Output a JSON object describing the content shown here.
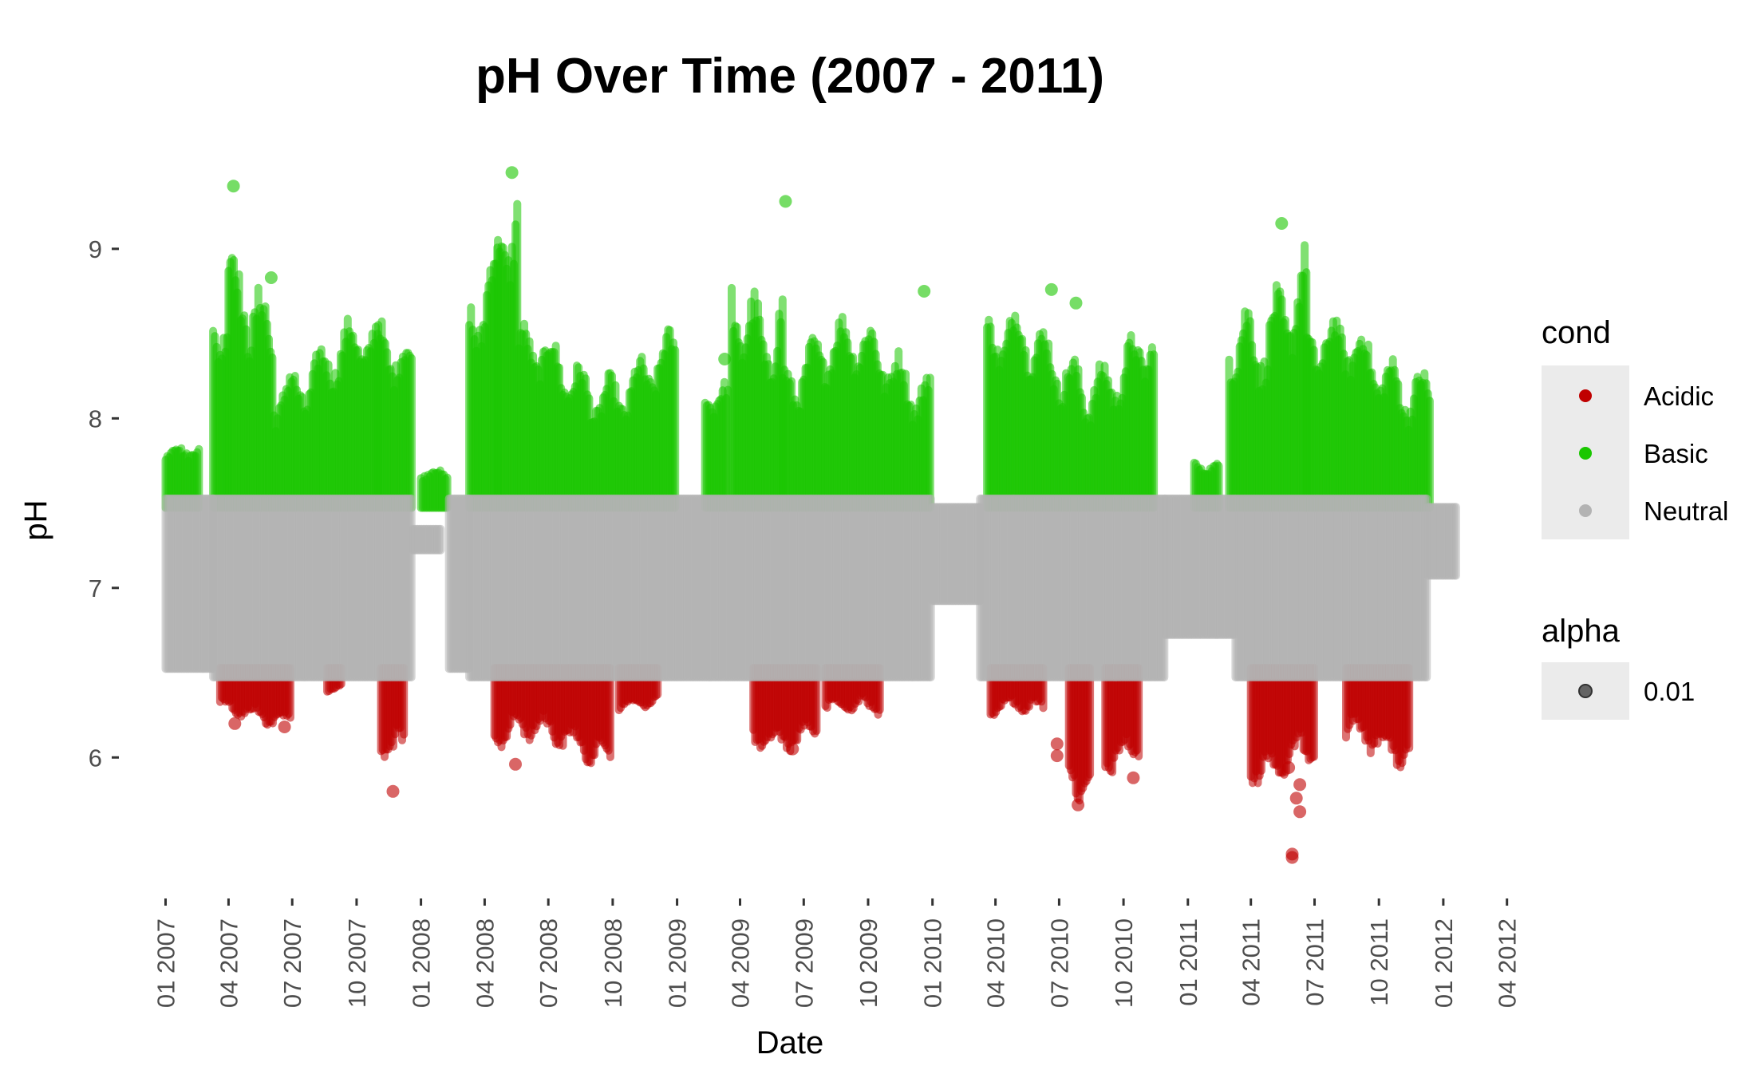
{
  "chart_data": {
    "type": "scatter",
    "title": "pH Over Time (2007 - 2011)",
    "xlabel": "Date",
    "ylabel": "pH",
    "ylim": [
      5.3,
      9.55
    ],
    "xlim": [
      "2006-11-01",
      "2012-05-01"
    ],
    "grid": false,
    "legend_position": "right",
    "y_ticks": [
      6,
      7,
      8,
      9
    ],
    "x_ticks": [
      {
        "date": "2007-01-01",
        "label": "01 2007"
      },
      {
        "date": "2007-04-01",
        "label": "04 2007"
      },
      {
        "date": "2007-07-01",
        "label": "07 2007"
      },
      {
        "date": "2007-10-01",
        "label": "10 2007"
      },
      {
        "date": "2008-01-01",
        "label": "01 2008"
      },
      {
        "date": "2008-04-01",
        "label": "04 2008"
      },
      {
        "date": "2008-07-01",
        "label": "07 2008"
      },
      {
        "date": "2008-10-01",
        "label": "10 2008"
      },
      {
        "date": "2009-01-01",
        "label": "01 2009"
      },
      {
        "date": "2009-04-01",
        "label": "04 2009"
      },
      {
        "date": "2009-07-01",
        "label": "07 2009"
      },
      {
        "date": "2009-10-01",
        "label": "10 2009"
      },
      {
        "date": "2010-01-01",
        "label": "01 2010"
      },
      {
        "date": "2010-04-01",
        "label": "04 2010"
      },
      {
        "date": "2010-07-01",
        "label": "07 2010"
      },
      {
        "date": "2010-10-01",
        "label": "10 2010"
      },
      {
        "date": "2011-01-01",
        "label": "01 2011"
      },
      {
        "date": "2011-04-01",
        "label": "04 2011"
      },
      {
        "date": "2011-07-01",
        "label": "07 2011"
      },
      {
        "date": "2011-10-01",
        "label": "10 2011"
      },
      {
        "date": "2012-01-01",
        "label": "01 2012"
      },
      {
        "date": "2012-04-01",
        "label": "04 2012"
      }
    ],
    "thresholds": {
      "neutral_min": 6.5,
      "neutral_max": 7.5
    },
    "series": [
      {
        "name": "Acidic",
        "color": "#C00000",
        "bands": [
          {
            "start": "2007-03-20",
            "end": "2007-06-30",
            "min": 6.2,
            "max": 6.5
          },
          {
            "start": "2007-08-20",
            "end": "2007-09-10",
            "min": 6.4,
            "max": 6.5
          },
          {
            "start": "2007-11-05",
            "end": "2007-12-10",
            "min": 5.8,
            "max": 6.5
          },
          {
            "start": "2008-04-15",
            "end": "2008-09-30",
            "min": 5.95,
            "max": 6.5
          },
          {
            "start": "2008-10-10",
            "end": "2008-12-05",
            "min": 6.3,
            "max": 6.5
          },
          {
            "start": "2009-04-20",
            "end": "2009-07-20",
            "min": 6.05,
            "max": 6.5
          },
          {
            "start": "2009-08-01",
            "end": "2009-10-20",
            "min": 6.2,
            "max": 6.5
          },
          {
            "start": "2010-03-25",
            "end": "2010-06-10",
            "min": 6.2,
            "max": 6.5
          },
          {
            "start": "2010-07-15",
            "end": "2010-08-15",
            "min": 5.72,
            "max": 6.5
          },
          {
            "start": "2010-09-05",
            "end": "2010-10-25",
            "min": 5.9,
            "max": 6.5
          },
          {
            "start": "2011-04-01",
            "end": "2011-07-01",
            "min": 5.85,
            "max": 6.5
          },
          {
            "start": "2011-08-15",
            "end": "2011-11-15",
            "min": 5.93,
            "max": 6.5
          }
        ],
        "points": [
          {
            "date": "2007-04-10",
            "value": 6.2
          },
          {
            "date": "2007-06-20",
            "value": 6.18
          },
          {
            "date": "2007-11-22",
            "value": 5.8
          },
          {
            "date": "2008-05-15",
            "value": 5.96
          },
          {
            "date": "2009-06-15",
            "value": 6.05
          },
          {
            "date": "2010-06-28",
            "value": 6.08
          },
          {
            "date": "2010-06-28",
            "value": 6.01
          },
          {
            "date": "2010-07-28",
            "value": 5.72
          },
          {
            "date": "2010-10-15",
            "value": 5.88
          },
          {
            "date": "2011-05-25",
            "value": 5.94
          },
          {
            "date": "2011-06-10",
            "value": 5.84
          },
          {
            "date": "2011-06-05",
            "value": 5.76
          },
          {
            "date": "2011-06-10",
            "value": 5.68
          },
          {
            "date": "2011-05-30",
            "value": 5.43
          },
          {
            "date": "2011-05-30",
            "value": 5.41
          }
        ]
      },
      {
        "name": "Basic",
        "color": "#1AC700",
        "bands": [
          {
            "start": "2007-01-01",
            "end": "2007-02-20",
            "min": 7.5,
            "max": 7.85
          },
          {
            "start": "2007-03-10",
            "end": "2007-04-01",
            "min": 7.5,
            "max": 8.75
          },
          {
            "start": "2007-04-01",
            "end": "2007-06-05",
            "min": 7.5,
            "max": 9.2
          },
          {
            "start": "2007-06-05",
            "end": "2007-11-01",
            "min": 7.5,
            "max": 8.6
          },
          {
            "start": "2007-11-01",
            "end": "2007-12-20",
            "min": 7.5,
            "max": 8.63
          },
          {
            "start": "2008-01-01",
            "end": "2008-02-10",
            "min": 7.5,
            "max": 7.75
          },
          {
            "start": "2008-03-10",
            "end": "2008-04-20",
            "min": 7.5,
            "max": 9.2
          },
          {
            "start": "2008-04-20",
            "end": "2008-05-20",
            "min": 7.5,
            "max": 9.45
          },
          {
            "start": "2008-05-20",
            "end": "2008-12-31",
            "min": 7.5,
            "max": 8.55
          },
          {
            "start": "2009-02-10",
            "end": "2009-03-15",
            "min": 7.5,
            "max": 8.3
          },
          {
            "start": "2009-03-20",
            "end": "2009-06-01",
            "min": 7.5,
            "max": 9.2
          },
          {
            "start": "2009-06-01",
            "end": "2009-12-31",
            "min": 7.5,
            "max": 8.6
          },
          {
            "start": "2010-03-20",
            "end": "2010-11-15",
            "min": 7.5,
            "max": 8.65
          },
          {
            "start": "2011-01-10",
            "end": "2011-02-15",
            "min": 7.5,
            "max": 7.75
          },
          {
            "start": "2011-03-01",
            "end": "2011-06-20",
            "min": 7.5,
            "max": 9.15
          },
          {
            "start": "2011-06-20",
            "end": "2011-12-15",
            "min": 7.5,
            "max": 8.6
          }
        ],
        "points": [
          {
            "date": "2007-04-08",
            "value": 9.37
          },
          {
            "date": "2007-06-01",
            "value": 8.83
          },
          {
            "date": "2008-05-10",
            "value": 9.45
          },
          {
            "date": "2009-06-05",
            "value": 9.28
          },
          {
            "date": "2009-03-10",
            "value": 8.35
          },
          {
            "date": "2009-12-20",
            "value": 8.75
          },
          {
            "date": "2010-06-20",
            "value": 8.76
          },
          {
            "date": "2010-07-25",
            "value": 8.68
          },
          {
            "date": "2011-05-15",
            "value": 9.15
          }
        ]
      },
      {
        "name": "Neutral",
        "color": "#B3B3B3",
        "bands": [
          {
            "start": "2007-01-01",
            "end": "2007-03-10",
            "min": 6.55,
            "max": 7.5
          },
          {
            "start": "2007-03-10",
            "end": "2007-12-20",
            "min": 6.5,
            "max": 7.5
          },
          {
            "start": "2007-12-20",
            "end": "2008-01-30",
            "min": 7.25,
            "max": 7.32
          },
          {
            "start": "2008-02-10",
            "end": "2008-03-10",
            "min": 6.55,
            "max": 7.5
          },
          {
            "start": "2008-03-10",
            "end": "2009-12-31",
            "min": 6.5,
            "max": 7.5
          },
          {
            "start": "2010-01-01",
            "end": "2010-03-10",
            "min": 6.95,
            "max": 7.45
          },
          {
            "start": "2010-03-10",
            "end": "2010-11-30",
            "min": 6.5,
            "max": 7.5
          },
          {
            "start": "2010-11-30",
            "end": "2011-03-10",
            "min": 6.75,
            "max": 7.5
          },
          {
            "start": "2011-03-10",
            "end": "2011-12-10",
            "min": 6.5,
            "max": 7.5
          },
          {
            "start": "2011-12-10",
            "end": "2012-01-20",
            "min": 7.1,
            "max": 7.45
          }
        ],
        "points": []
      }
    ],
    "legend": {
      "color_title": "cond",
      "color_entries": [
        {
          "label": "Acidic",
          "color": "#C00000"
        },
        {
          "label": "Basic",
          "color": "#1AC700"
        },
        {
          "label": "Neutral",
          "color": "#B3B3B3"
        }
      ],
      "alpha_title": "alpha",
      "alpha_entries": [
        {
          "label": "0.01",
          "color": "#4d4d4d"
        }
      ]
    }
  }
}
